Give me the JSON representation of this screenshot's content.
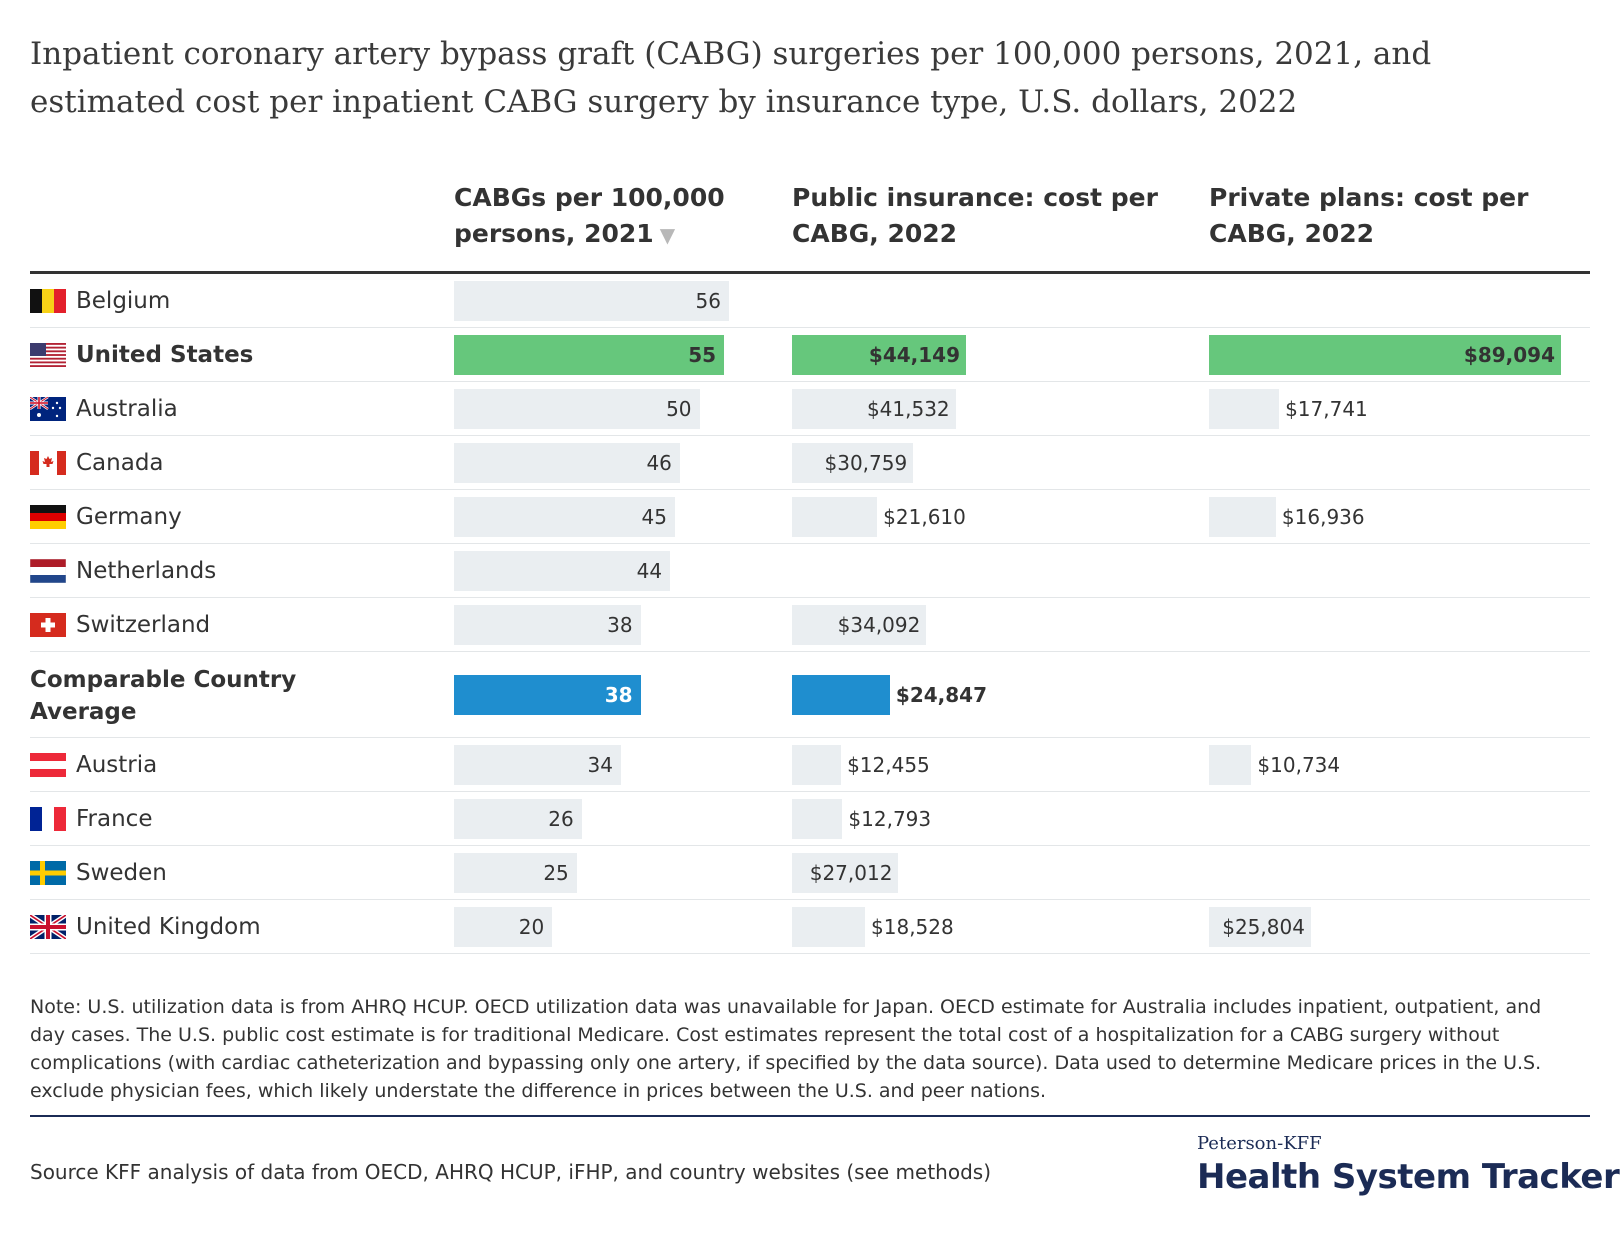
{
  "title": "Inpatient coronary artery bypass graft (CABG) surgeries per 100,000 persons, 2021, and estimated cost per inpatient CABG surgery by insurance type, U.S. dollars, 2022",
  "columns": {
    "col1_line1": "CABGs per 100,000",
    "col1_line2": "persons, 2021",
    "col2_line1": "Public insurance: cost per",
    "col2_line2": "CABG, 2022",
    "col3_line1": "Private plans: cost per",
    "col3_line2": "CABG, 2022",
    "sort_indicator": "▼"
  },
  "colors": {
    "default_bar": "#eaeef1",
    "us_bar": "#66c77c",
    "average_bar": "#1f8ecf",
    "average_text": "#ffffff"
  },
  "chart_data": {
    "type": "table",
    "rows": [
      {
        "country": "Belgium",
        "flag": "belgium-flag",
        "cabgs": 56,
        "cabgs_label": "56",
        "public": null,
        "public_label": "",
        "private": null,
        "private_label": "",
        "style": "default"
      },
      {
        "country": "United States",
        "flag": "us-flag",
        "cabgs": 55,
        "cabgs_label": "55",
        "public": 44149,
        "public_label": "$44,149",
        "private": 89094,
        "private_label": "$89,094",
        "style": "us"
      },
      {
        "country": "Australia",
        "flag": "australia-flag",
        "cabgs": 50,
        "cabgs_label": "50",
        "public": 41532,
        "public_label": "$41,532",
        "private": 17741,
        "private_label": "$17,741",
        "style": "default"
      },
      {
        "country": "Canada",
        "flag": "canada-flag",
        "cabgs": 46,
        "cabgs_label": "46",
        "public": 30759,
        "public_label": "$30,759",
        "private": null,
        "private_label": "",
        "style": "default"
      },
      {
        "country": "Germany",
        "flag": "germany-flag",
        "cabgs": 45,
        "cabgs_label": "45",
        "public": 21610,
        "public_label": "$21,610",
        "private": 16936,
        "private_label": "$16,936",
        "style": "default"
      },
      {
        "country": "Netherlands",
        "flag": "netherlands-flag",
        "cabgs": 44,
        "cabgs_label": "44",
        "public": null,
        "public_label": "",
        "private": null,
        "private_label": "",
        "style": "default"
      },
      {
        "country": "Switzerland",
        "flag": "switzerland-flag",
        "cabgs": 38,
        "cabgs_label": "38",
        "public": 34092,
        "public_label": "$34,092",
        "private": null,
        "private_label": "",
        "style": "default"
      },
      {
        "country": "Comparable Country",
        "country_line2": "Average",
        "flag": "",
        "cabgs": 38,
        "cabgs_label": "38",
        "public": 24847,
        "public_label": "$24,847",
        "private": null,
        "private_label": "",
        "style": "average"
      },
      {
        "country": "Austria",
        "flag": "austria-flag",
        "cabgs": 34,
        "cabgs_label": "34",
        "public": 12455,
        "public_label": "$12,455",
        "private": 10734,
        "private_label": "$10,734",
        "style": "default"
      },
      {
        "country": "France",
        "flag": "france-flag",
        "cabgs": 26,
        "cabgs_label": "26",
        "public": 12793,
        "public_label": "$12,793",
        "private": null,
        "private_label": "",
        "style": "default"
      },
      {
        "country": "Sweden",
        "flag": "sweden-flag",
        "cabgs": 25,
        "cabgs_label": "25",
        "public": 27012,
        "public_label": "$27,012",
        "private": null,
        "private_label": "",
        "style": "default"
      },
      {
        "country": "United Kingdom",
        "flag": "uk-flag",
        "cabgs": 20,
        "cabgs_label": "20",
        "public": 18528,
        "public_label": "$18,528",
        "private": 25804,
        "private_label": "$25,804",
        "style": "default"
      }
    ]
  },
  "note": "Note: U.S. utilization data is from AHRQ HCUP. OECD utilization data was unavailable for Japan. OECD estimate for Australia includes inpatient, outpatient, and day cases. The U.S. public cost estimate is for traditional Medicare. Cost estimates represent the total cost of a hospitalization for a CABG surgery without complications (with cardiac catheterization and bypassing only one artery, if specified by the data source). Data used to determine Medicare prices in the U.S. exclude physician fees, which likely understate the difference in prices between the U.S. and peer nations.",
  "source": "Source KFF analysis of data from OECD, AHRQ HCUP, iFHP, and country websites (see methods)",
  "logo": {
    "top": "Peterson-KFF",
    "bottom": "Health System Tracker"
  }
}
